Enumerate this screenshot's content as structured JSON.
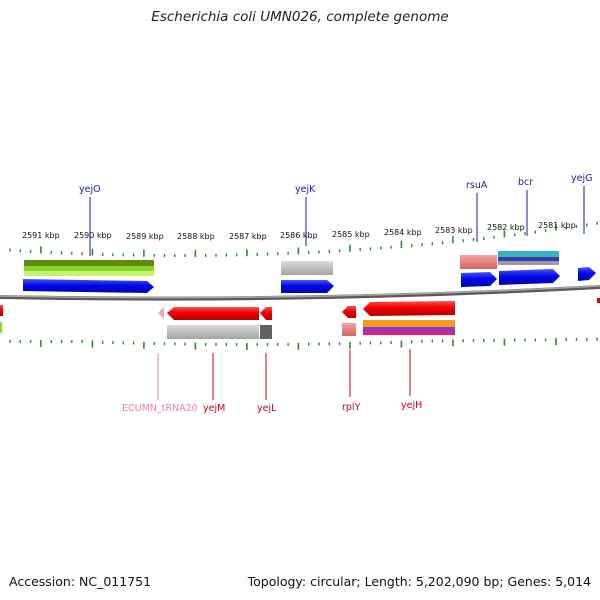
{
  "title": "Escherichia coli UMN026, complete genome",
  "footer": {
    "accession": "Accession: NC_011751",
    "summary": "Topology: circular; Length: 5,202,090 bp; Genes: 5,014"
  },
  "scale_labels": [
    "2591 kbp",
    "2590 kbp",
    "2589 kbp",
    "2588 kbp",
    "2587 kbp",
    "2586 kbp",
    "2585 kbp",
    "2584 kbp",
    "2583 kbp",
    "2582 kbp",
    "2581 kbp"
  ],
  "genes_top": [
    "yejO",
    "yejK",
    "rsuA",
    "bcr",
    "yejG"
  ],
  "genes_bottom": [
    "ECUMN_tRNA20",
    "yejM",
    "yejL",
    "rplY",
    "yejH"
  ],
  "colors": {
    "forward_gene": "#0a12e8",
    "reverse_gene": "#e8000f",
    "forward_label": "#1a1aa8",
    "reverse_label": "#c8001a",
    "trna_label": "#e87fb0",
    "tick": "#2e8b2e",
    "backbone": "#808080"
  }
}
